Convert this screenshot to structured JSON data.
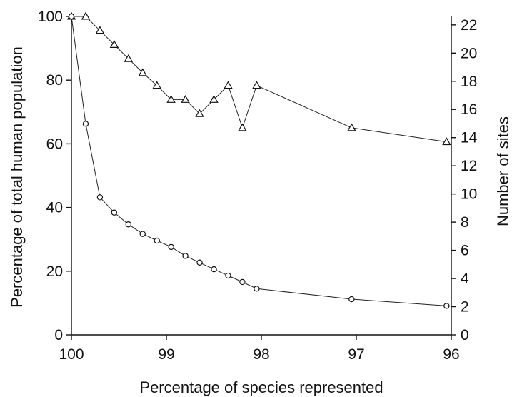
{
  "chart_data": {
    "type": "line",
    "title": "",
    "xlabel": "Percentage of species represented",
    "ylabel_left": "Percentage of total human population",
    "ylabel_right": "Number of sites",
    "x_reversed": true,
    "xlim": [
      96,
      100
    ],
    "x_ticks": [
      100,
      99,
      98,
      97,
      96
    ],
    "x_tick_labels": [
      "100",
      "99",
      "98",
      "97",
      "96"
    ],
    "ylim_left": [
      0,
      100
    ],
    "y_left_ticks": [
      0,
      20,
      40,
      60,
      80,
      100
    ],
    "y_left_tick_labels": [
      "0",
      "20",
      "40",
      "60",
      "80",
      "100"
    ],
    "ylim_right": [
      0,
      22.6
    ],
    "y_right_ticks": [
      0,
      2,
      4,
      6,
      8,
      10,
      12,
      14,
      16,
      18,
      20,
      22
    ],
    "y_right_tick_labels": [
      "0",
      "2",
      "4",
      "6",
      "8",
      "10",
      "12",
      "14",
      "16",
      "18",
      "20",
      "22"
    ],
    "grid": false,
    "series": [
      {
        "marker": "triangle",
        "axis": "right",
        "x": [
          100,
          99.85,
          99.7,
          99.55,
          99.4,
          99.25,
          99.1,
          98.95,
          98.8,
          98.65,
          98.5,
          98.35,
          98.2,
          98.05,
          97.05,
          96.05
        ],
        "values": [
          22.6,
          22.6,
          21.6,
          20.6,
          19.6,
          18.6,
          17.7,
          16.7,
          16.7,
          15.7,
          16.7,
          17.7,
          14.7,
          17.7,
          14.7,
          13.7
        ]
      },
      {
        "marker": "circle",
        "axis": "left",
        "x": [
          100,
          99.85,
          99.7,
          99.55,
          99.4,
          99.25,
          99.1,
          98.95,
          98.8,
          98.65,
          98.5,
          98.35,
          98.2,
          98.05,
          97.05,
          96.05
        ],
        "values": [
          100,
          66.3,
          43.2,
          38.4,
          34.7,
          31.7,
          29.6,
          27.6,
          24.8,
          22.7,
          20.6,
          18.6,
          16.6,
          14.5,
          11.2,
          9.1
        ]
      }
    ]
  }
}
